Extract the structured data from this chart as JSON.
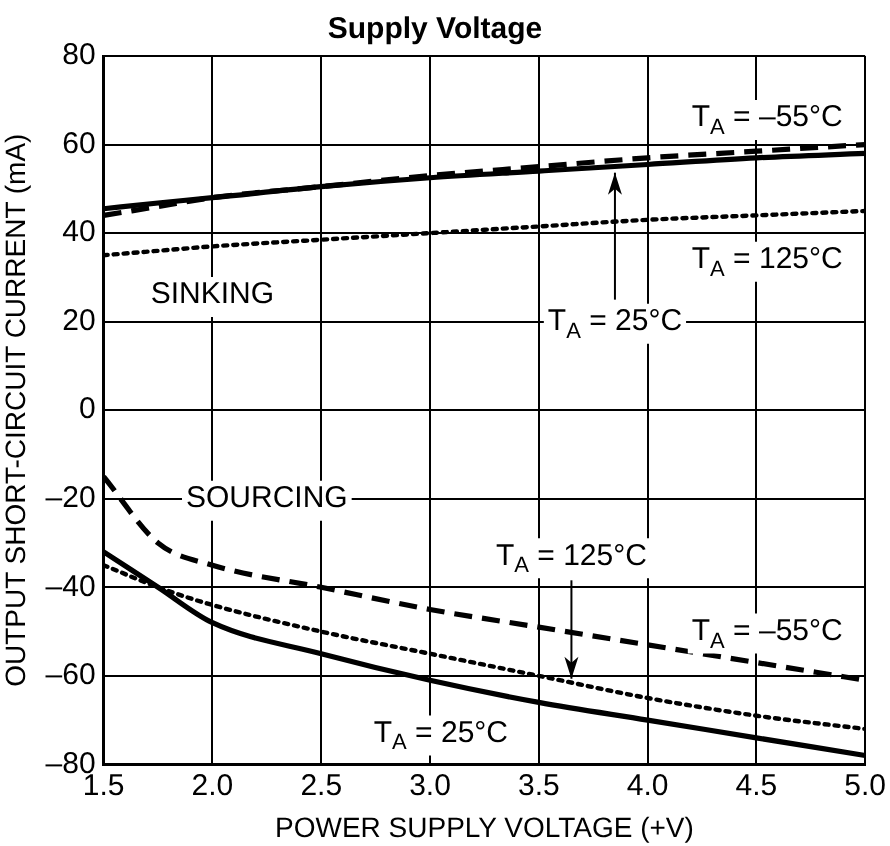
{
  "chart_data": {
    "type": "line",
    "title": "Supply Voltage",
    "xlabel": "POWER SUPPLY VOLTAGE (+V)",
    "ylabel": "OUTPUT SHORT-CIRCUIT CURRENT (mA)",
    "x": [
      1.5,
      1.75,
      2.0,
      2.5,
      3.0,
      3.5,
      4.0,
      4.5,
      5.0
    ],
    "series": [
      {
        "color": "#000000",
        "line_style": "dashed",
        "values": [
          44,
          46,
          48,
          50.5,
          53,
          55,
          57,
          58.5,
          60
        ]
      },
      {
        "color": "#000000",
        "line_style": "solid",
        "values": [
          45.5,
          46.8,
          48,
          50.5,
          52.5,
          54,
          55.5,
          57,
          58
        ]
      },
      {
        "color": "#000000",
        "line_style": "dotted",
        "values": [
          35,
          36,
          37,
          38.5,
          40,
          41.5,
          43,
          44,
          45
        ]
      },
      {
        "color": "#000000",
        "line_style": "dashed",
        "values": [
          -15,
          -30,
          -35,
          -40,
          -45,
          -49,
          -53,
          -57,
          -61
        ]
      },
      {
        "color": "#000000",
        "line_style": "solid",
        "values": [
          -32,
          -40,
          -48,
          -55,
          -61,
          -66,
          -70,
          -74,
          -78
        ]
      },
      {
        "color": "#000000",
        "line_style": "dotted",
        "values": [
          -35,
          -40,
          -44,
          -50,
          -55,
          -60,
          -65,
          -69,
          -72
        ]
      }
    ],
    "xlim": [
      1.5,
      5.0
    ],
    "xticks": [
      {
        "value": 1.5,
        "label": "1.5"
      },
      {
        "value": 2.0,
        "label": "2.0"
      },
      {
        "value": 2.5,
        "label": "2.5"
      },
      {
        "value": 3.0,
        "label": "3.0"
      },
      {
        "value": 3.5,
        "label": "3.5"
      },
      {
        "value": 4.0,
        "label": "4.0"
      },
      {
        "value": 4.5,
        "label": "4.5"
      },
      {
        "value": 5.0,
        "label": "5.0"
      }
    ],
    "ylim": [
      -80,
      80
    ],
    "yticks": [
      {
        "value": -80,
        "label": "–80"
      },
      {
        "value": -60,
        "label": "–60"
      },
      {
        "value": -40,
        "label": "–40"
      },
      {
        "value": -20,
        "label": "–20"
      },
      0,
      20,
      40,
      60,
      80
    ],
    "grid": true,
    "marker": "none",
    "annotations": [
      "T$_{A}$ = –55°C",
      "T$_{A}$ = 125°C",
      {
        "text": "T$_{A}$ = 25°C",
        "x": 3.85,
        "y": 55
      },
      "SINKING",
      "SOURCING",
      {
        "text": "T$_{A}$ = 125°C",
        "x": 3.65,
        "y": -62
      },
      "T$_{A}$ = –55°C",
      "T$_{A}$ = 25°C"
    ]
  }
}
